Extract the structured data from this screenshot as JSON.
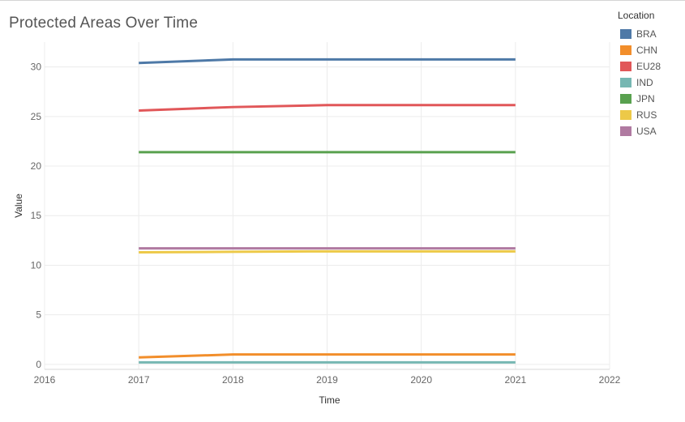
{
  "chart_data": {
    "type": "line",
    "title": "Protected Areas Over Time",
    "xlabel": "Time",
    "ylabel": "Value",
    "xlim": [
      2016,
      2022
    ],
    "ylim": [
      -0.5,
      32.5
    ],
    "xticks": [
      "2016",
      "2017",
      "2018",
      "2019",
      "2020",
      "2021",
      "2022"
    ],
    "yticks": [
      "0",
      "5",
      "10",
      "15",
      "20",
      "25",
      "30"
    ],
    "x": [
      2017,
      2018,
      2019,
      2020,
      2021
    ],
    "legend_title": "Location",
    "series": [
      {
        "name": "BRA",
        "color": "#4e79a7",
        "values": [
          30.4,
          30.75,
          30.75,
          30.75,
          30.75
        ]
      },
      {
        "name": "CHN",
        "color": "#f28e2b",
        "values": [
          0.7,
          1.0,
          1.0,
          1.0,
          1.0
        ]
      },
      {
        "name": "EU28",
        "color": "#e15759",
        "values": [
          25.6,
          25.95,
          26.15,
          26.15,
          26.15
        ]
      },
      {
        "name": "IND",
        "color": "#76b7b2",
        "values": [
          0.2,
          0.2,
          0.2,
          0.2,
          0.2
        ]
      },
      {
        "name": "JPN",
        "color": "#59a14f",
        "values": [
          21.4,
          21.4,
          21.4,
          21.4,
          21.4
        ]
      },
      {
        "name": "RUS",
        "color": "#edc948",
        "values": [
          11.3,
          11.35,
          11.4,
          11.4,
          11.4
        ]
      },
      {
        "name": "USA",
        "color": "#b07aa1",
        "values": [
          11.7,
          11.7,
          11.7,
          11.7,
          11.7
        ]
      }
    ]
  }
}
